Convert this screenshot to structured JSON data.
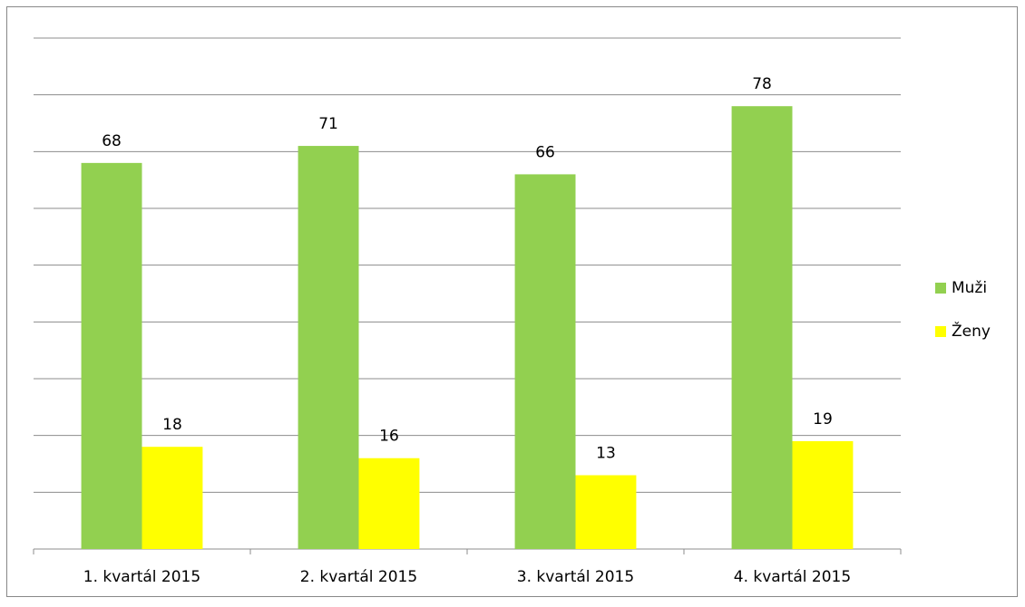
{
  "chart_data": {
    "type": "bar",
    "categories": [
      "1. kvartál 2015",
      "2. kvartál 2015",
      "3. kvartál 2015",
      "4. kvartál 2015"
    ],
    "series": [
      {
        "name": "Muži",
        "color": "#92d050",
        "values": [
          68,
          71,
          66,
          78
        ]
      },
      {
        "name": "Ženy",
        "color": "#ffff00",
        "values": [
          18,
          16,
          13,
          19
        ]
      }
    ],
    "ylim": [
      0,
      90
    ],
    "yticks": [
      0,
      10,
      20,
      30,
      40,
      50,
      60,
      70,
      80,
      90
    ],
    "grid": true,
    "legend": "right"
  }
}
